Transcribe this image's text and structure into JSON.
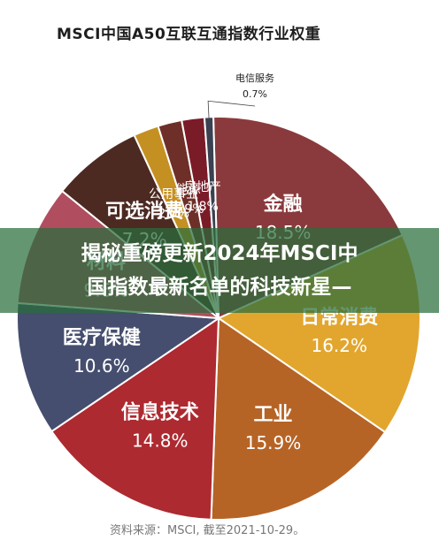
{
  "chart_data": {
    "type": "pie",
    "title": "MSCI中国A50互联互通指数行业权重",
    "source": "资料来源：MSCI, 截至2021-10-29。",
    "slices": [
      {
        "label": "金融",
        "value": 18.5,
        "value_text": "18.5%",
        "color": "#8a3a3c"
      },
      {
        "label": "日常消费",
        "value": 16.2,
        "value_text": "16.2%",
        "color": "#e2a62e"
      },
      {
        "label": "工业",
        "value": 15.9,
        "value_text": "15.9%",
        "color": "#b66426"
      },
      {
        "label": "信息技术",
        "value": 14.8,
        "value_text": "14.8%",
        "color": "#ad2a30"
      },
      {
        "label": "医疗保健",
        "value": 10.6,
        "value_text": "10.6%",
        "color": "#454e6e"
      },
      {
        "label": "材料",
        "value": 9.6,
        "value_text": "9.6%",
        "color": "#b04e60"
      },
      {
        "label": "可选消费",
        "value": 7.2,
        "value_text": "7.2%",
        "color": "#4c2a22"
      },
      {
        "label": "公用事业",
        "value": 2.0,
        "value_text": "2.0%",
        "color": "#c59022"
      },
      {
        "label": "能源",
        "value": 1.9,
        "value_text": "1.9%",
        "color": "#6e2f28"
      },
      {
        "label": "房地产",
        "value": 1.8,
        "value_text": "1.8%",
        "color": "#7a1c28"
      },
      {
        "label": "电信服务",
        "value": 0.7,
        "value_text": "0.7%",
        "color": "#3a4150"
      }
    ]
  },
  "banner": {
    "line1": "揭秘重磅更新2024年MSCI中",
    "line2": "国指数最新名单的科技新星—"
  }
}
